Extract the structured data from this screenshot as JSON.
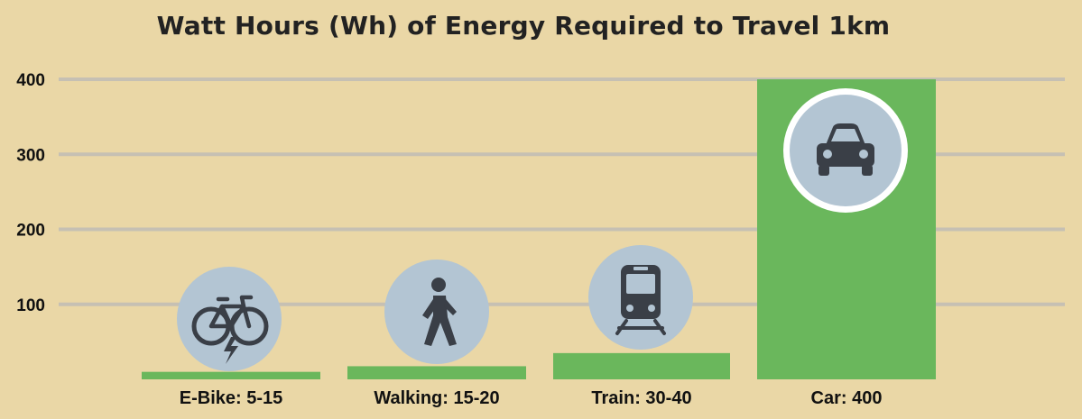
{
  "chart_data": {
    "type": "bar",
    "title": "Watt Hours (Wh) of Energy Required to Travel 1km",
    "xlabel": "",
    "ylabel": "",
    "ylim": [
      0,
      400
    ],
    "y_ticks": [
      100,
      200,
      300,
      400
    ],
    "grid": true,
    "categories": [
      "E-Bike: 5-15",
      "Walking: 15-20",
      "Train: 30-40",
      "Car: 400"
    ],
    "values": [
      10,
      17.5,
      35,
      400
    ],
    "icons": [
      "electric-bike-icon",
      "walking-person-icon",
      "train-icon",
      "car-icon"
    ]
  },
  "colors": {
    "background": "#ead7a6",
    "bar": "#6ab75c",
    "gridline": "#c6c0b3",
    "icon_circle": "#b3c5d3",
    "icon_glyph": "#3a3f47",
    "icon_ring": "#ffffff"
  }
}
